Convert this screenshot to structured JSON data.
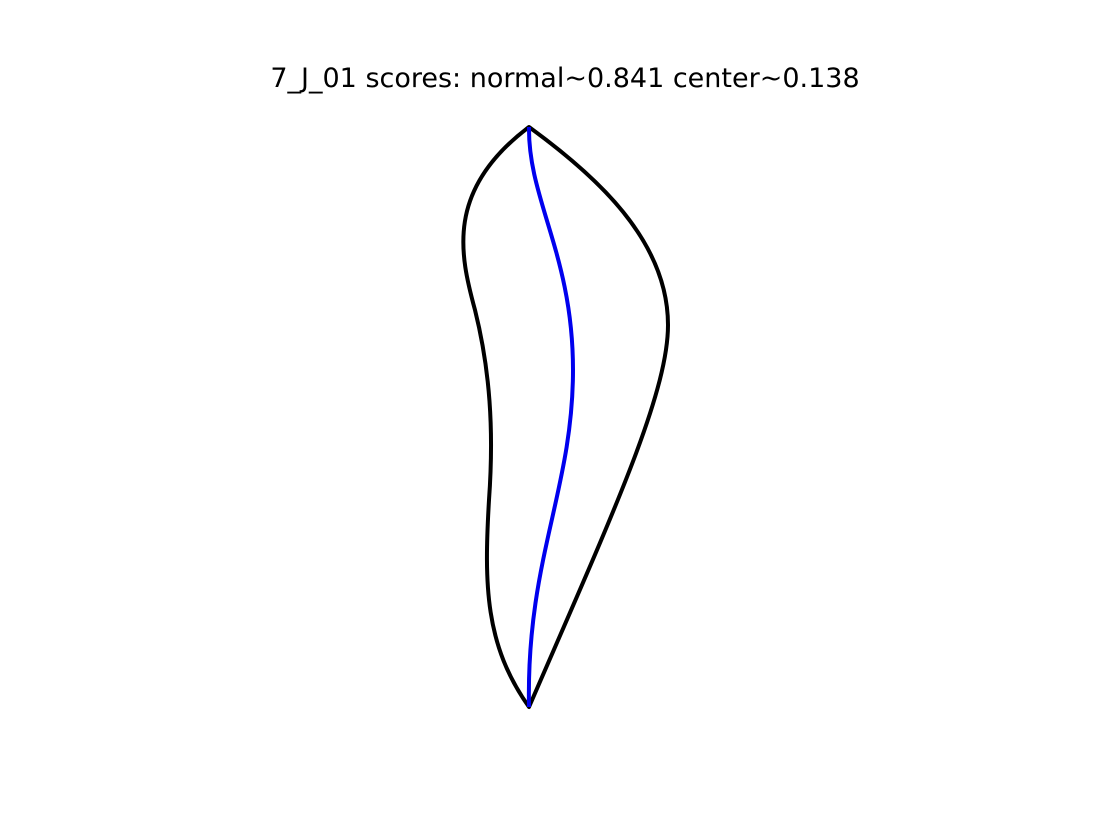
{
  "figure": {
    "title": "7_J_01 scores: normal~0.841 center~0.138"
  },
  "shape": {
    "outline_color": "#000000",
    "centerline_color": "#0000ee"
  }
}
